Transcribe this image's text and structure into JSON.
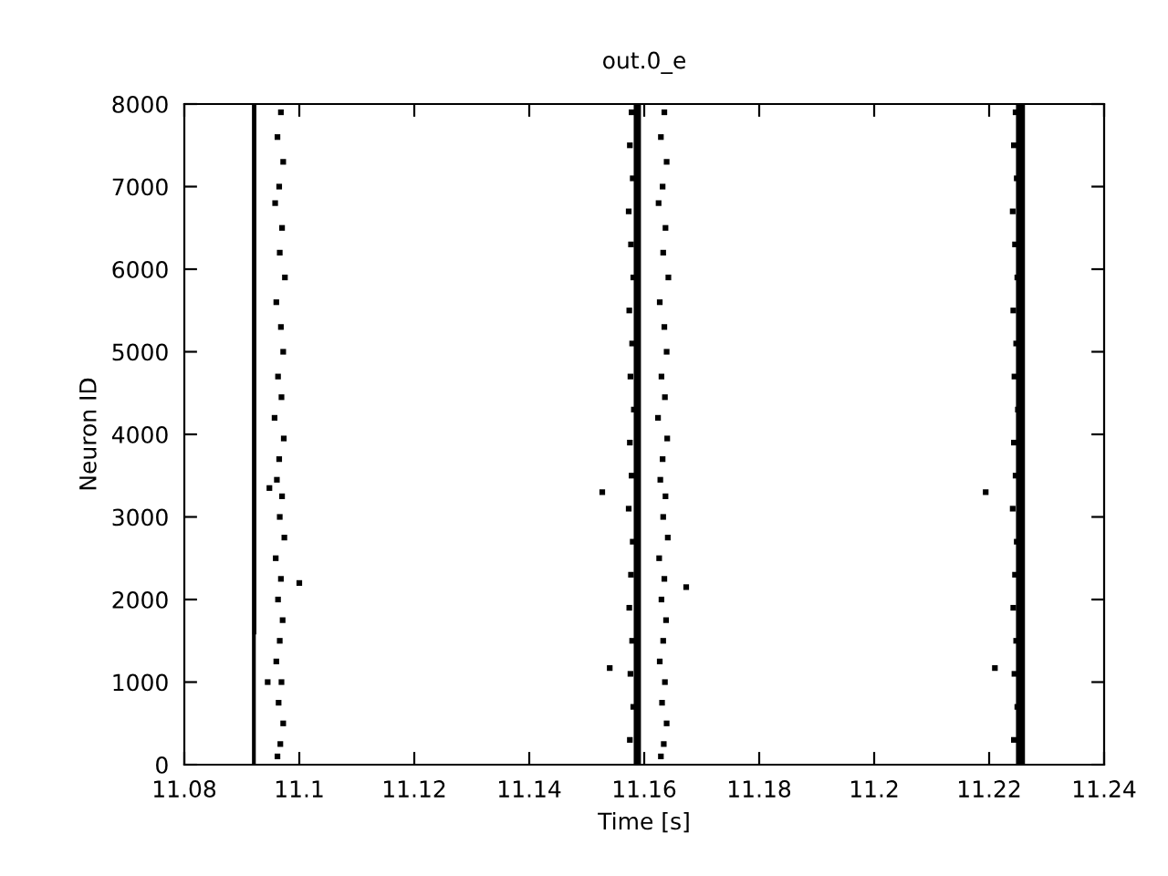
{
  "chart_data": {
    "type": "scatter",
    "title": "out.0_e",
    "xlabel": "Time [s]",
    "ylabel": "Neuron ID",
    "xlim": [
      11.08,
      11.24
    ],
    "xticks": [
      {
        "value": 11.08,
        "label": "11.08"
      },
      {
        "value": 11.1,
        "label": "11.1"
      },
      {
        "value": 11.12,
        "label": "11.12"
      },
      {
        "value": 11.14,
        "label": "11.14"
      },
      {
        "value": 11.16,
        "label": "11.16"
      },
      {
        "value": 11.18,
        "label": "11.18"
      },
      {
        "value": 11.2,
        "label": "11.2"
      },
      {
        "value": 11.22,
        "label": "11.22"
      },
      {
        "value": 11.24,
        "label": "11.24"
      }
    ],
    "ylim": [
      0,
      8000
    ],
    "yticks": [
      0,
      1000,
      2000,
      3000,
      4000,
      5000,
      6000,
      7000,
      8000
    ],
    "grid": false,
    "legend": false,
    "series": [
      {
        "type": "line",
        "color": "#000000",
        "x": [
          11.0921,
          11.0921
        ],
        "values": [
          0,
          8000
        ]
      },
      {
        "type": "line",
        "color": "#000000",
        "x": [
          11.0922,
          11.0922
        ],
        "values": [
          1600,
          8000
        ]
      },
      {
        "type": "line",
        "color": "#000000",
        "x": [
          11.1585,
          11.1585
        ],
        "values": [
          0,
          8000
        ]
      },
      {
        "type": "line",
        "color": "#000000",
        "x": [
          11.1588,
          11.1588
        ],
        "values": [
          0,
          8000
        ]
      },
      {
        "type": "line",
        "color": "#000000",
        "x": [
          11.1591,
          11.1591
        ],
        "values": [
          0,
          8000
        ]
      },
      {
        "type": "line",
        "color": "#000000",
        "x": [
          11.225,
          11.225
        ],
        "values": [
          0,
          8000
        ]
      },
      {
        "type": "line",
        "color": "#000000",
        "x": [
          11.2253,
          11.2253
        ],
        "values": [
          0,
          8000
        ]
      },
      {
        "type": "line",
        "color": "#000000",
        "x": [
          11.2256,
          11.2256
        ],
        "values": [
          0,
          8000
        ]
      },
      {
        "type": "line",
        "color": "#000000",
        "x": [
          11.2259,
          11.2259
        ],
        "values": [
          0,
          8000
        ]
      },
      {
        "marker": "square",
        "color": "#000000",
        "x": [
          11.0968,
          11.0962,
          11.0972,
          11.0965,
          11.0958,
          11.097,
          11.0966,
          11.0975,
          11.096,
          11.0968,
          11.0972,
          11.0963,
          11.0969,
          11.0957,
          11.0973,
          11.0965,
          11.0961,
          11.097,
          11.0966,
          11.0974,
          11.0959,
          11.0968,
          11.0963,
          11.0971,
          11.0966,
          11.096,
          11.0969,
          11.0964,
          11.0972,
          11.0967,
          11.0962,
          11.1,
          11.0948,
          11.0945,
          11.1635,
          11.1629,
          11.1639,
          11.1632,
          11.1625,
          11.1637,
          11.1633,
          11.1642,
          11.1627,
          11.1635,
          11.1639,
          11.163,
          11.1636,
          11.1624,
          11.164,
          11.1632,
          11.1628,
          11.1637,
          11.1633,
          11.1641,
          11.1626,
          11.1635,
          11.163,
          11.1638,
          11.1633,
          11.1627,
          11.1636,
          11.1631,
          11.1639,
          11.1634,
          11.1629,
          11.1578,
          11.1575,
          11.158,
          11.1573,
          11.1577,
          11.1581,
          11.1574,
          11.1579,
          11.1576,
          11.1582,
          11.1575,
          11.1578,
          11.1573,
          11.158,
          11.1577,
          11.1574,
          11.1579,
          11.1576,
          11.1581,
          11.1575,
          11.2246,
          11.2243,
          11.2248,
          11.2241,
          11.2245,
          11.2249,
          11.2242,
          11.2247,
          11.2244,
          11.225,
          11.2243,
          11.2246,
          11.2241,
          11.2248,
          11.2245,
          11.2242,
          11.2247,
          11.2244,
          11.2249,
          11.2243,
          11.1527,
          11.154,
          11.1673,
          11.2194,
          11.221
        ],
        "values": [
          7900,
          7600,
          7300,
          7000,
          6800,
          6500,
          6200,
          5900,
          5600,
          5300,
          5000,
          4700,
          4450,
          4200,
          3950,
          3700,
          3450,
          3250,
          3000,
          2750,
          2500,
          2250,
          2000,
          1750,
          1500,
          1250,
          1000,
          750,
          500,
          250,
          100,
          2200,
          3350,
          1000,
          7900,
          7600,
          7300,
          7000,
          6800,
          6500,
          6200,
          5900,
          5600,
          5300,
          5000,
          4700,
          4450,
          4200,
          3950,
          3700,
          3450,
          3250,
          3000,
          2750,
          2500,
          2250,
          2000,
          1750,
          1500,
          1250,
          1000,
          750,
          500,
          250,
          100,
          7900,
          7500,
          7100,
          6700,
          6300,
          5900,
          5500,
          5100,
          4700,
          4300,
          3900,
          3500,
          3100,
          2700,
          2300,
          1900,
          1500,
          1100,
          700,
          300,
          7900,
          7500,
          7100,
          6700,
          6300,
          5900,
          5500,
          5100,
          4700,
          4300,
          3900,
          3500,
          3100,
          2700,
          2300,
          1900,
          1500,
          1100,
          700,
          300,
          3300,
          1170,
          2150,
          3300,
          1170
        ]
      }
    ]
  }
}
